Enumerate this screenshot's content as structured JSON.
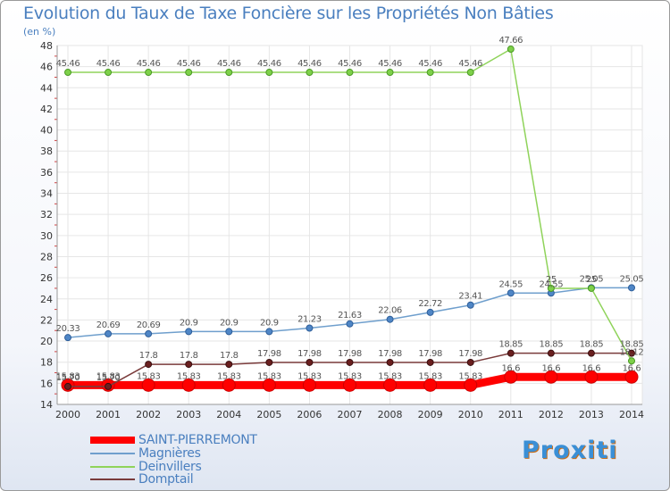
{
  "chart_data": {
    "type": "line",
    "title": "Evolution du Taux de Taxe Foncière sur les Propriétés Non Bâties",
    "ylabel": "(en %)",
    "xlabel": "",
    "ylim": [
      14,
      48
    ],
    "yticks": [
      14,
      16,
      18,
      20,
      22,
      24,
      26,
      28,
      30,
      32,
      34,
      36,
      38,
      40,
      42,
      44,
      46,
      48
    ],
    "x": [
      "2000",
      "2001",
      "2002",
      "2003",
      "2004",
      "2005",
      "2006",
      "2007",
      "2008",
      "2009",
      "2010",
      "2011",
      "2012",
      "2013",
      "2014"
    ],
    "series": [
      {
        "name": "SAINT-PIERREMONT",
        "color": "#ff0000",
        "values": [
          15.83,
          15.83,
          15.83,
          15.83,
          15.83,
          15.83,
          15.83,
          15.83,
          15.83,
          15.83,
          15.83,
          16.6,
          16.6,
          16.6,
          16.6
        ],
        "labels": [
          "15.83",
          "15.83",
          "15.83",
          "15.83",
          "15.83",
          "15.83",
          "15.83",
          "15.83",
          "15.83",
          "15.83",
          "15.83",
          "16.6",
          "16.6",
          "16.6",
          "16.6"
        ]
      },
      {
        "name": "Magnières",
        "color": "#6f9fcd",
        "values": [
          20.33,
          20.69,
          20.69,
          20.9,
          20.9,
          20.9,
          21.23,
          21.63,
          22.06,
          22.72,
          23.41,
          24.55,
          24.55,
          25.05,
          25.05
        ],
        "labels": [
          "20.33",
          "20.69",
          "20.69",
          "20.9",
          "20.9",
          "20.9",
          "21.23",
          "21.63",
          "22.06",
          "22.72",
          "23.41",
          "24.55",
          "24.55",
          "25.05",
          "25.05"
        ]
      },
      {
        "name": "Deinvillers",
        "color": "#8fd35a",
        "values": [
          45.46,
          45.46,
          45.46,
          45.46,
          45.46,
          45.46,
          45.46,
          45.46,
          45.46,
          45.46,
          45.46,
          47.66,
          25,
          25,
          18.12
        ],
        "labels": [
          "45.46",
          "45.46",
          "45.46",
          "45.46",
          "45.46",
          "45.46",
          "45.46",
          "45.46",
          "45.46",
          "45.46",
          "45.46",
          "47.66",
          "25",
          "25",
          "18.12"
        ]
      },
      {
        "name": "Domptail",
        "color": "#7a3b3b",
        "values": [
          15.7,
          15.7,
          17.8,
          17.8,
          17.8,
          17.98,
          17.98,
          17.98,
          17.98,
          17.98,
          17.98,
          18.85,
          18.85,
          18.85,
          18.85
        ],
        "labels": [
          "15.70",
          "15.70",
          "17.8",
          "17.8",
          "17.8",
          "17.98",
          "17.98",
          "17.98",
          "17.98",
          "17.98",
          "17.98",
          "18.85",
          "18.85",
          "18.85",
          "18.85"
        ]
      }
    ],
    "legend_position": "bottom-left"
  },
  "brand": "Proxiti"
}
